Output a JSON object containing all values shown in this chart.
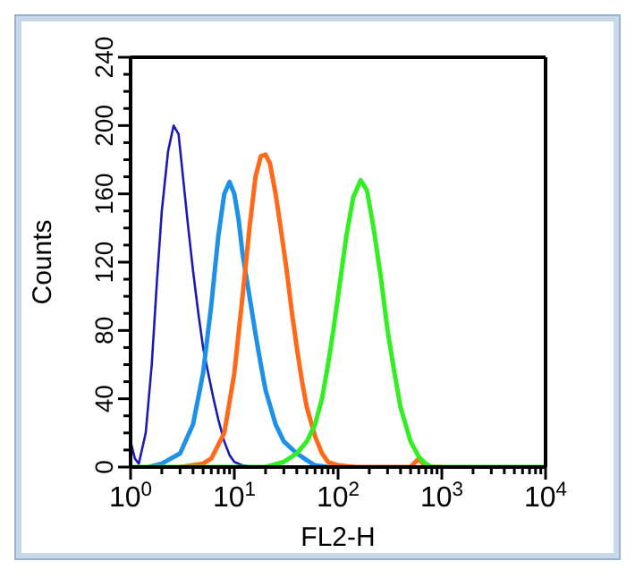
{
  "chart_data": {
    "type": "line",
    "xlabel": "FL2-H",
    "ylabel": "Counts",
    "log": "x",
    "xlim": [
      1,
      10000
    ],
    "ylim": [
      0,
      240
    ],
    "xticks": [
      {
        "value": 1,
        "label": "10$^{0}$"
      },
      {
        "value": 2,
        "label": null
      },
      {
        "value": 3,
        "label": null
      },
      {
        "value": 4,
        "label": null
      },
      {
        "value": 5,
        "label": null
      },
      {
        "value": 6,
        "label": null
      },
      {
        "value": 7,
        "label": null
      },
      {
        "value": 8,
        "label": null
      },
      {
        "value": 9,
        "label": null
      },
      {
        "value": 10,
        "label": "10$^{1}$"
      },
      {
        "value": 20,
        "label": null
      },
      {
        "value": 30,
        "label": null
      },
      {
        "value": 40,
        "label": null
      },
      {
        "value": 50,
        "label": null
      },
      {
        "value": 60,
        "label": null
      },
      {
        "value": 70,
        "label": null
      },
      {
        "value": 80,
        "label": null
      },
      {
        "value": 90,
        "label": null
      },
      {
        "value": 100,
        "label": "10$^{2}$"
      },
      {
        "value": 200,
        "label": null
      },
      {
        "value": 300,
        "label": null
      },
      {
        "value": 400,
        "label": null
      },
      {
        "value": 500,
        "label": null
      },
      {
        "value": 600,
        "label": null
      },
      {
        "value": 700,
        "label": null
      },
      {
        "value": 800,
        "label": null
      },
      {
        "value": 900,
        "label": null
      },
      {
        "value": 1000,
        "label": "10$^{3}$"
      },
      {
        "value": 2000,
        "label": null
      },
      {
        "value": 3000,
        "label": null
      },
      {
        "value": 4000,
        "label": null
      },
      {
        "value": 5000,
        "label": null
      },
      {
        "value": 6000,
        "label": null
      },
      {
        "value": 7000,
        "label": null
      },
      {
        "value": 8000,
        "label": null
      },
      {
        "value": 9000,
        "label": null
      },
      {
        "value": 10000,
        "label": "10$^{4}$"
      }
    ],
    "yticks": [
      0,
      {
        "value": 10,
        "label": null
      },
      {
        "value": 20,
        "label": null
      },
      {
        "value": 30,
        "label": null
      },
      40,
      {
        "value": 50,
        "label": null
      },
      {
        "value": 60,
        "label": null
      },
      {
        "value": 70,
        "label": null
      },
      80,
      {
        "value": 90,
        "label": null
      },
      {
        "value": 100,
        "label": null
      },
      {
        "value": 110,
        "label": null
      },
      120,
      {
        "value": 130,
        "label": null
      },
      {
        "value": 140,
        "label": null
      },
      {
        "value": 150,
        "label": null
      },
      160,
      {
        "value": 170,
        "label": null
      },
      {
        "value": 180,
        "label": null
      },
      {
        "value": 190,
        "label": null
      },
      200,
      {
        "value": 210,
        "label": null
      },
      {
        "value": 220,
        "label": null
      },
      {
        "value": 230,
        "label": null
      },
      240
    ],
    "grid": false,
    "marker": "none",
    "line_style": "solid",
    "series": [
      {
        "color": "#1a1ab4",
        "x": [
          1,
          1.1,
          1.2,
          1.4,
          1.6,
          1.8,
          2,
          2.3,
          2.6,
          2.9,
          3.2,
          3.6,
          4,
          4.5,
          5,
          5.6,
          6.3,
          7,
          8,
          9,
          10,
          12,
          15
        ],
        "values": [
          15,
          5,
          2,
          20,
          60,
          110,
          150,
          185,
          200,
          195,
          170,
          140,
          115,
          90,
          70,
          55,
          40,
          28,
          15,
          7,
          3,
          1,
          0
        ]
      },
      {
        "color": "#1e90e8",
        "x": [
          1.5,
          2,
          3,
          4,
          5,
          6,
          7,
          8,
          9,
          10,
          11,
          12,
          14,
          16,
          18,
          20,
          25,
          30,
          40,
          50,
          60,
          80,
          100
        ],
        "values": [
          0,
          2,
          8,
          25,
          55,
          95,
          135,
          160,
          167,
          160,
          145,
          125,
          100,
          78,
          60,
          45,
          25,
          15,
          8,
          4,
          1,
          0,
          0
        ]
      },
      {
        "color": "#ff6a1a",
        "x": [
          3,
          5,
          6,
          8,
          10,
          12,
          14,
          16,
          18,
          20,
          22,
          25,
          28,
          32,
          36,
          40,
          45,
          50,
          60,
          70,
          80,
          100,
          150,
          300,
          500,
          600,
          700,
          1000
        ],
        "values": [
          0,
          2,
          5,
          20,
          55,
          100,
          140,
          170,
          182,
          183,
          178,
          160,
          140,
          115,
          90,
          70,
          50,
          35,
          18,
          8,
          3,
          1,
          0,
          0,
          0,
          5,
          0,
          0
        ]
      },
      {
        "color": "#33ee22",
        "x": [
          1,
          20,
          30,
          40,
          50,
          60,
          70,
          80,
          90,
          100,
          120,
          140,
          165,
          190,
          220,
          260,
          300,
          350,
          400,
          500,
          600,
          700,
          800,
          10000
        ],
        "values": [
          0,
          0,
          3,
          8,
          15,
          25,
          40,
          60,
          80,
          100,
          135,
          158,
          168,
          162,
          140,
          110,
          80,
          55,
          35,
          15,
          6,
          2,
          0,
          0
        ]
      }
    ]
  }
}
